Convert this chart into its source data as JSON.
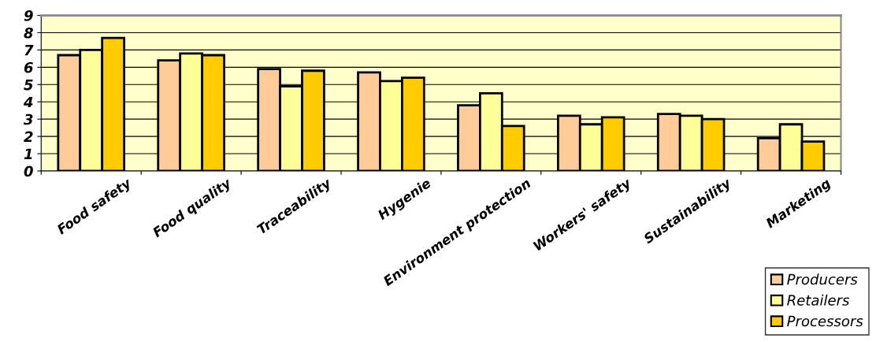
{
  "chart_data": {
    "type": "bar",
    "categories": [
      "Food safety",
      "Food quality",
      "Traceability",
      "Hygenie",
      "Environment protection",
      "Workers' safety",
      "Sustainability",
      "Marketing"
    ],
    "series": [
      {
        "name": "Producers",
        "color": "#ffcc99",
        "values": [
          6.7,
          6.4,
          5.9,
          5.7,
          3.8,
          3.2,
          3.3,
          1.9
        ]
      },
      {
        "name": "Retailers",
        "color": "#ffff99",
        "values": [
          7.0,
          6.8,
          4.9,
          5.2,
          4.5,
          2.7,
          3.2,
          2.7
        ]
      },
      {
        "name": "Processors",
        "color": "#ffcc00",
        "values": [
          7.7,
          6.7,
          5.8,
          5.4,
          2.6,
          3.1,
          3.0,
          1.7
        ]
      }
    ],
    "ylim": [
      0,
      9
    ],
    "yticks": [
      0,
      1,
      2,
      3,
      4,
      5,
      6,
      7,
      8,
      9
    ],
    "grid": "y",
    "legend": "bottom right"
  }
}
